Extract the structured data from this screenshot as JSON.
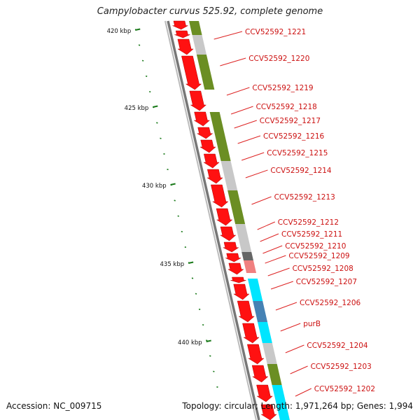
{
  "title": "Campylobacter curvus 525.92, complete genome",
  "footer": {
    "accession": "Accession: NC_009715",
    "topology": "Topology: circular; Length: 1,971,264 bp; Genes: 1,994"
  },
  "colors": {
    "cds_forward": "#ff1111",
    "backbone": "#777777",
    "label_text": "#cc1111",
    "label_line": "#dd2222",
    "tick": "#1a7a1a",
    "olive": "#6b8e23",
    "gray": "#c8c8c8",
    "dark_gray": "#666666",
    "cyan": "#00e5ff",
    "steel_blue": "#4682b4",
    "pink": "#f08080"
  },
  "kbp_labels": [
    "420 kbp",
    "425 kbp",
    "430 kbp",
    "435 kbp",
    "440 kbp"
  ],
  "gene_labels": [
    "CCV52592_1221",
    "CCV52592_1220",
    "CCV52592_1219",
    "CCV52592_1218",
    "CCV52592_1217",
    "CCV52592_1216",
    "CCV52592_1215",
    "CCV52592_1214",
    "CCV52592_1213",
    "CCV52592_1212",
    "CCV52592_1211",
    "CCV52592_1210",
    "CCV52592_1209",
    "CCV52592_1208",
    "CCV52592_1207",
    "CCV52592_1206",
    "purB",
    "CCV52592_1204",
    "CCV52592_1203",
    "CCV52592_1202"
  ],
  "cog_track": [
    "olive",
    "gray",
    "olive",
    "olive",
    "olive",
    "gray",
    "olive",
    "gray",
    "dark_gray",
    "pink",
    "cyan",
    "steel_blue",
    "cyan",
    "gray",
    "olive",
    "cyan"
  ]
}
